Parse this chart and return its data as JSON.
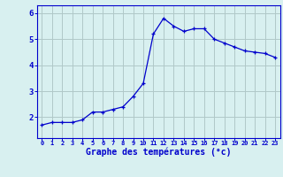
{
  "hours": [
    0,
    1,
    2,
    3,
    4,
    5,
    6,
    7,
    8,
    9,
    10,
    11,
    12,
    13,
    14,
    15,
    16,
    17,
    18,
    19,
    20,
    21,
    22,
    23
  ],
  "temps": [
    1.7,
    1.8,
    1.8,
    1.8,
    1.9,
    2.2,
    2.2,
    2.3,
    2.4,
    2.8,
    3.3,
    5.2,
    5.8,
    5.5,
    5.3,
    5.4,
    5.4,
    5.0,
    4.85,
    4.7,
    4.55,
    4.5,
    4.45,
    4.3
  ],
  "line_color": "#0000cc",
  "marker_color": "#0000cc",
  "bg_color": "#d8f0f0",
  "grid_color": "#b0c8c8",
  "axis_color": "#0000cc",
  "xlabel": "Graphe des températures (°c)",
  "xlabel_color": "#0000cc",
  "ylabel_ticks": [
    2,
    3,
    4,
    5,
    6
  ],
  "xlim": [
    -0.5,
    23.5
  ],
  "ylim": [
    1.2,
    6.3
  ],
  "xtick_labels": [
    "0",
    "1",
    "2",
    "3",
    "4",
    "5",
    "6",
    "7",
    "8",
    "9",
    "10",
    "11",
    "12",
    "13",
    "14",
    "15",
    "16",
    "17",
    "18",
    "19",
    "20",
    "21",
    "22",
    "23"
  ]
}
